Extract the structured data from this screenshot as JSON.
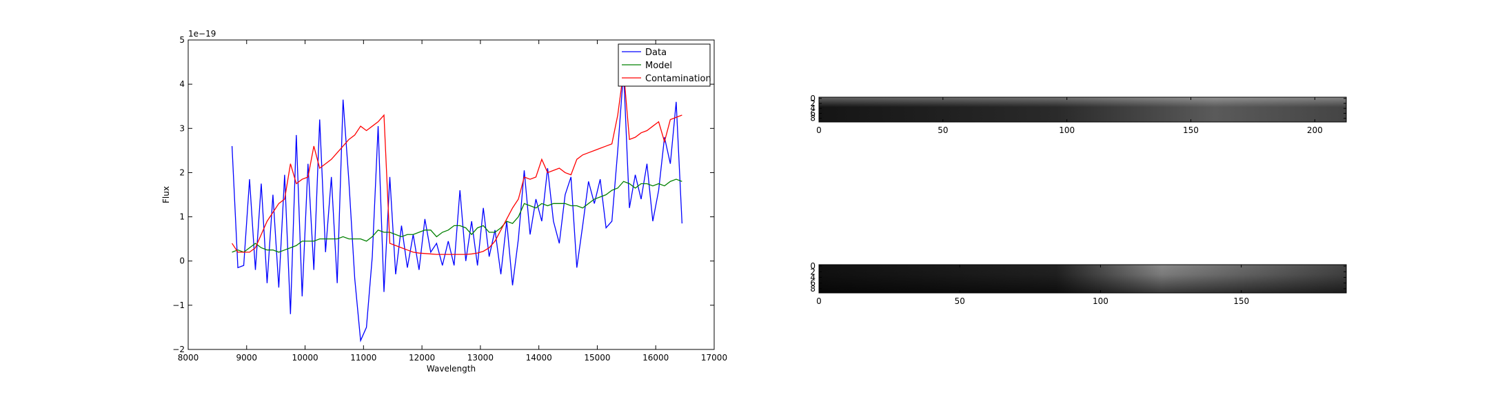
{
  "chart_data": [
    {
      "type": "line",
      "xlabel": "Wavelength",
      "ylabel": "Flux",
      "offset_text": "1e−19",
      "x": [
        8750,
        8850,
        8950,
        9050,
        9150,
        9250,
        9350,
        9450,
        9550,
        9650,
        9750,
        9850,
        9950,
        10050,
        10150,
        10250,
        10350,
        10450,
        10550,
        10650,
        10750,
        10850,
        10950,
        11050,
        11150,
        11250,
        11350,
        11450,
        11550,
        11650,
        11750,
        11850,
        11950,
        12050,
        12150,
        12250,
        12350,
        12450,
        12550,
        12650,
        12750,
        12850,
        12950,
        13050,
        13150,
        13250,
        13350,
        13450,
        13550,
        13650,
        13750,
        13850,
        13950,
        14050,
        14150,
        14250,
        14350,
        14450,
        14550,
        14650,
        14750,
        14850,
        14950,
        15050,
        15150,
        15250,
        15350,
        15450,
        15550,
        15650,
        15750,
        15850,
        15950,
        16050,
        16150,
        16250,
        16350,
        16450
      ],
      "series": [
        {
          "name": "Data",
          "color": "#0000ff",
          "values": [
            2.6,
            -0.15,
            -0.1,
            1.85,
            -0.2,
            1.75,
            -0.5,
            1.5,
            -0.6,
            1.95,
            -1.2,
            2.85,
            -0.8,
            2.2,
            -0.2,
            3.2,
            0.2,
            1.9,
            -0.5,
            3.65,
            1.8,
            -0.4,
            -1.8,
            -1.5,
            0.1,
            3.05,
            -0.7,
            1.9,
            -0.3,
            0.8,
            -0.15,
            0.6,
            -0.2,
            0.95,
            0.2,
            0.4,
            -0.1,
            0.45,
            -0.1,
            1.6,
            0.0,
            0.9,
            -0.1,
            1.2,
            0.1,
            0.7,
            -0.3,
            0.9,
            -0.55,
            0.5,
            2.05,
            0.6,
            1.4,
            0.9,
            2.1,
            0.9,
            0.4,
            1.5,
            1.9,
            -0.15,
            0.8,
            1.8,
            1.3,
            1.85,
            0.75,
            0.9,
            2.5,
            4.3,
            1.2,
            1.95,
            1.4,
            2.2,
            0.9,
            1.6,
            2.8,
            2.2,
            3.6,
            0.85
          ]
        },
        {
          "name": "Model",
          "color": "#008000",
          "values": [
            0.2,
            0.25,
            0.2,
            0.3,
            0.4,
            0.3,
            0.25,
            0.25,
            0.2,
            0.25,
            0.3,
            0.35,
            0.45,
            0.45,
            0.45,
            0.5,
            0.5,
            0.5,
            0.5,
            0.55,
            0.5,
            0.5,
            0.5,
            0.45,
            0.55,
            0.7,
            0.65,
            0.65,
            0.6,
            0.55,
            0.6,
            0.6,
            0.65,
            0.7,
            0.7,
            0.55,
            0.65,
            0.7,
            0.8,
            0.8,
            0.75,
            0.6,
            0.75,
            0.8,
            0.65,
            0.65,
            0.75,
            0.9,
            0.85,
            1.0,
            1.3,
            1.25,
            1.2,
            1.3,
            1.25,
            1.3,
            1.3,
            1.3,
            1.25,
            1.25,
            1.2,
            1.3,
            1.4,
            1.45,
            1.5,
            1.6,
            1.65,
            1.8,
            1.75,
            1.65,
            1.75,
            1.75,
            1.7,
            1.75,
            1.7,
            1.8,
            1.85,
            1.8
          ]
        },
        {
          "name": "Contamination",
          "color": "#ff0000",
          "values": [
            0.4,
            0.2,
            0.2,
            0.2,
            0.3,
            0.6,
            0.9,
            1.1,
            1.3,
            1.4,
            2.2,
            1.75,
            1.85,
            1.9,
            2.6,
            2.1,
            2.2,
            2.3,
            2.45,
            2.6,
            2.75,
            2.85,
            3.05,
            2.95,
            3.05,
            3.15,
            3.3,
            0.4,
            0.35,
            0.3,
            0.25,
            0.2,
            0.18,
            0.17,
            0.16,
            0.15,
            0.15,
            0.15,
            0.15,
            0.15,
            0.15,
            0.16,
            0.18,
            0.22,
            0.3,
            0.45,
            0.7,
            0.95,
            1.2,
            1.4,
            1.9,
            1.85,
            1.9,
            2.3,
            2.0,
            2.05,
            2.1,
            2.0,
            1.95,
            2.3,
            2.4,
            2.45,
            2.5,
            2.55,
            2.6,
            2.65,
            3.3,
            4.3,
            2.75,
            2.8,
            2.9,
            2.95,
            3.05,
            3.15,
            2.7,
            3.2,
            3.25,
            3.3
          ]
        }
      ],
      "xlim": [
        8000,
        17000
      ],
      "xticks": [
        8000,
        9000,
        10000,
        11000,
        12000,
        13000,
        14000,
        15000,
        16000,
        17000
      ],
      "ylim": [
        -2,
        5
      ],
      "yticks": [
        {
          "value": -2,
          "label": "−2"
        },
        {
          "value": -1,
          "label": "−1"
        },
        0,
        1,
        2,
        3,
        4,
        5
      ],
      "legend": "upper right"
    },
    {
      "type": "image",
      "xlim": [
        0,
        212.7
      ],
      "xticks": [
        0,
        50,
        100,
        150,
        200
      ],
      "ylim": [
        9.5,
        -0.5
      ],
      "yticks": [
        0,
        2,
        4,
        6,
        8
      ]
    },
    {
      "type": "image",
      "xlim": [
        0,
        187.3
      ],
      "xticks": [
        0,
        50,
        100,
        150
      ],
      "ylim": [
        9.5,
        -0.5
      ],
      "yticks": [
        0,
        2,
        4,
        6,
        8
      ]
    }
  ]
}
